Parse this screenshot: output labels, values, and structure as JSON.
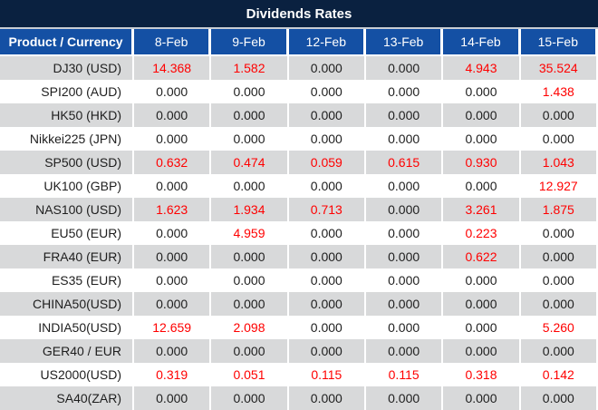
{
  "title": "Dividends Rates",
  "colors": {
    "title_bg": "#0A2140",
    "header_bg": "#1450A4",
    "header_text": "#FFFFFF",
    "alt_row_bg": "#D8D9DA",
    "row_bg": "#FFFFFF",
    "value_nonzero": "#FF0000",
    "value_zero": "#1E1E1E"
  },
  "chart_data": {
    "type": "table",
    "title": "Dividends Rates",
    "columns": [
      "Product / Currency",
      "8-Feb",
      "9-Feb",
      "12-Feb",
      "13-Feb",
      "14-Feb",
      "15-Feb"
    ],
    "rows": [
      {
        "product": "DJ30 (USD)",
        "values": [
          "14.368",
          "1.582",
          "0.000",
          "0.000",
          "4.943",
          "35.524"
        ]
      },
      {
        "product": "SPI200 (AUD)",
        "values": [
          "0.000",
          "0.000",
          "0.000",
          "0.000",
          "0.000",
          "1.438"
        ]
      },
      {
        "product": "HK50 (HKD)",
        "values": [
          "0.000",
          "0.000",
          "0.000",
          "0.000",
          "0.000",
          "0.000"
        ]
      },
      {
        "product": "Nikkei225 (JPN)",
        "values": [
          "0.000",
          "0.000",
          "0.000",
          "0.000",
          "0.000",
          "0.000"
        ]
      },
      {
        "product": "SP500 (USD)",
        "values": [
          "0.632",
          "0.474",
          "0.059",
          "0.615",
          "0.930",
          "1.043"
        ]
      },
      {
        "product": "UK100 (GBP)",
        "values": [
          "0.000",
          "0.000",
          "0.000",
          "0.000",
          "0.000",
          "12.927"
        ]
      },
      {
        "product": "NAS100 (USD)",
        "values": [
          "1.623",
          "1.934",
          "0.713",
          "0.000",
          "3.261",
          "1.875"
        ]
      },
      {
        "product": "EU50 (EUR)",
        "values": [
          "0.000",
          "4.959",
          "0.000",
          "0.000",
          "0.223",
          "0.000"
        ]
      },
      {
        "product": "FRA40 (EUR)",
        "values": [
          "0.000",
          "0.000",
          "0.000",
          "0.000",
          "0.622",
          "0.000"
        ]
      },
      {
        "product": "ES35 (EUR)",
        "values": [
          "0.000",
          "0.000",
          "0.000",
          "0.000",
          "0.000",
          "0.000"
        ]
      },
      {
        "product": "CHINA50(USD)",
        "values": [
          "0.000",
          "0.000",
          "0.000",
          "0.000",
          "0.000",
          "0.000"
        ]
      },
      {
        "product": "INDIA50(USD)",
        "values": [
          "12.659",
          "2.098",
          "0.000",
          "0.000",
          "0.000",
          "5.260"
        ]
      },
      {
        "product": "GER40 / EUR",
        "values": [
          "0.000",
          "0.000",
          "0.000",
          "0.000",
          "0.000",
          "0.000"
        ]
      },
      {
        "product": "US2000(USD)",
        "values": [
          "0.319",
          "0.051",
          "0.115",
          "0.115",
          "0.318",
          "0.142"
        ]
      },
      {
        "product": "SA40(ZAR)",
        "values": [
          "0.000",
          "0.000",
          "0.000",
          "0.000",
          "0.000",
          "0.000"
        ]
      }
    ]
  }
}
